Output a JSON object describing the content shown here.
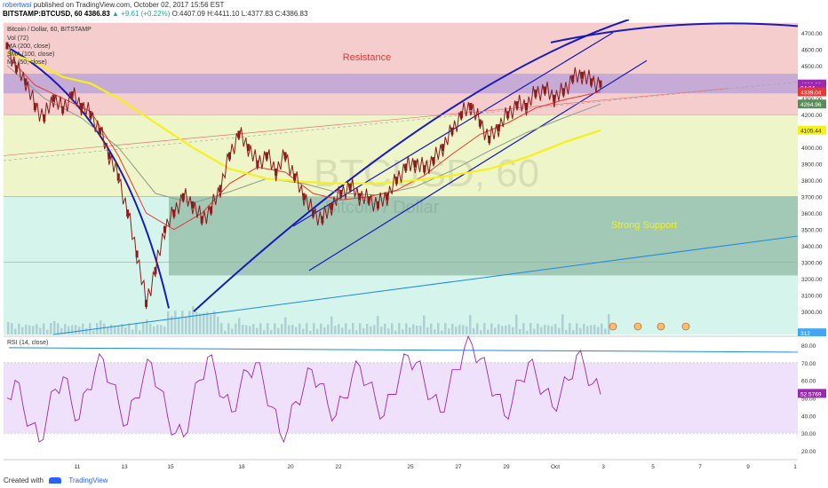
{
  "header": {
    "author": "robertwsi",
    "published": "published on TradingView.com, October 02, 2017 15:56 EST",
    "symbol": "BITSTAMP:BTCUSD, 60",
    "last": "4386.83",
    "change": "▲ +9.61 (+0.22%)",
    "ohlc": "O:4407.09 H:4411.10 L:4377.83 C:4386.83"
  },
  "legend": {
    "title": "Bitcoin / Dollar, 60, BITSTAMP",
    "vol": "Vol (72)",
    "ma200": "MA (200, close)",
    "ma100": "SMA (100, close)",
    "ma50": "MA (50, close)"
  },
  "watermark": {
    "line1": "BTCUSD, 60",
    "line2": "Bitcoin / Dollar"
  },
  "zones": {
    "resistance": "Resistance",
    "support": "Strong Support"
  },
  "rsi": {
    "label": "RSI (14, close)",
    "value": "52.5769"
  },
  "footer": {
    "created": "Created with",
    "brand": "TradingView"
  },
  "colors": {
    "resistance_zone": "#f6cdcd",
    "purple_zone": "#b39ddb",
    "yellow_zone": "#eef5c8",
    "support_zone": "#8fb9a4",
    "bottom_zone": "#d5f5ec",
    "price_line": "#8a1c1c",
    "ma_yellow": "#f5f01e",
    "ma_red": "#e53935",
    "ma_gray": "#8d9b8d",
    "trend_blue": "#1a1ab8",
    "rsi_line": "#9c27b0",
    "rsi_band": "#efe0fb"
  },
  "chart_data": [
    {
      "type": "line",
      "title": "Bitcoin / Dollar, 60, BITSTAMP",
      "x_ticks": [
        "11",
        "13",
        "15",
        "18",
        "20",
        "22",
        "25",
        "27",
        "29",
        "Oct",
        "3",
        "5",
        "7",
        "9",
        "1"
      ],
      "y_ticks": [
        3000,
        3100,
        3200,
        3300,
        3400,
        3500,
        3600,
        3700,
        3800,
        3900,
        4000,
        4100,
        4200,
        4300,
        4400,
        4500,
        4600,
        4700
      ],
      "ylim": [
        2860,
        4780
      ],
      "price_labels": [
        {
          "value": "4386.83",
          "color": "#9c27b0"
        },
        {
          "value": "04:04",
          "color": "#9c27b0"
        },
        {
          "value": "4339.04",
          "color": "#e53935"
        },
        {
          "value": "4264.96",
          "color": "#5b8c5b"
        },
        {
          "value": "4105.44",
          "color": "#f5f01e"
        },
        {
          "value": "312",
          "color": "#42a5f5"
        }
      ],
      "zones": [
        {
          "name": "Resistance",
          "from": 4200,
          "to": 4760
        },
        {
          "name": "",
          "from": 4330,
          "to": 4450
        },
        {
          "name": "Strong Support",
          "from": 3220,
          "to": 3700
        }
      ],
      "price": [
        [
          0,
          4620
        ],
        [
          1,
          4480
        ],
        [
          2,
          4400
        ],
        [
          3,
          4250
        ],
        [
          4,
          4180
        ],
        [
          5,
          4300
        ],
        [
          6,
          4230
        ],
        [
          7,
          4320
        ],
        [
          8,
          4250
        ],
        [
          9,
          4200
        ],
        [
          10,
          4100
        ],
        [
          11,
          3950
        ],
        [
          12,
          3820
        ],
        [
          13,
          3600
        ],
        [
          14,
          3350
        ],
        [
          15,
          3050
        ],
        [
          16,
          3250
        ],
        [
          17,
          3500
        ],
        [
          18,
          3600
        ],
        [
          19,
          3700
        ],
        [
          20,
          3650
        ],
        [
          21,
          3560
        ],
        [
          22,
          3620
        ],
        [
          23,
          3750
        ],
        [
          24,
          3950
        ],
        [
          25,
          4080
        ],
        [
          26,
          4000
        ],
        [
          27,
          3900
        ],
        [
          28,
          3950
        ],
        [
          29,
          3850
        ],
        [
          30,
          3950
        ],
        [
          31,
          3820
        ],
        [
          32,
          3700
        ],
        [
          33,
          3600
        ],
        [
          34,
          3560
        ],
        [
          35,
          3640
        ],
        [
          36,
          3720
        ],
        [
          37,
          3760
        ],
        [
          38,
          3700
        ],
        [
          39,
          3680
        ],
        [
          40,
          3650
        ],
        [
          41,
          3700
        ],
        [
          42,
          3800
        ],
        [
          43,
          3880
        ],
        [
          44,
          3900
        ],
        [
          45,
          3870
        ],
        [
          46,
          3920
        ],
        [
          47,
          4000
        ],
        [
          48,
          4100
        ],
        [
          49,
          4200
        ],
        [
          50,
          4250
        ],
        [
          51,
          4150
        ],
        [
          52,
          4050
        ],
        [
          53,
          4120
        ],
        [
          54,
          4200
        ],
        [
          55,
          4260
        ],
        [
          56,
          4250
        ],
        [
          57,
          4330
        ],
        [
          58,
          4350
        ],
        [
          59,
          4300
        ],
        [
          60,
          4340
        ],
        [
          61,
          4420
        ],
        [
          62,
          4440
        ],
        [
          63,
          4400
        ],
        [
          64,
          4387
        ]
      ],
      "ma_yellow": [
        [
          0,
          4580
        ],
        [
          3,
          4520
        ],
        [
          6,
          4430
        ],
        [
          9,
          4390
        ],
        [
          12,
          4300
        ],
        [
          16,
          4150
        ],
        [
          20,
          4000
        ],
        [
          24,
          3870
        ],
        [
          28,
          3810
        ],
        [
          32,
          3790
        ],
        [
          36,
          3780
        ],
        [
          40,
          3780
        ],
        [
          44,
          3800
        ],
        [
          48,
          3830
        ],
        [
          52,
          3870
        ],
        [
          56,
          3940
        ],
        [
          60,
          4030
        ],
        [
          64,
          4105
        ]
      ],
      "ma_red": [
        [
          0,
          4560
        ],
        [
          3,
          4380
        ],
        [
          6,
          4300
        ],
        [
          9,
          4220
        ],
        [
          12,
          3950
        ],
        [
          15,
          3600
        ],
        [
          18,
          3500
        ],
        [
          21,
          3600
        ],
        [
          24,
          3780
        ],
        [
          27,
          3880
        ],
        [
          30,
          3850
        ],
        [
          33,
          3720
        ],
        [
          36,
          3680
        ],
        [
          39,
          3700
        ],
        [
          42,
          3740
        ],
        [
          45,
          3830
        ],
        [
          48,
          3960
        ],
        [
          51,
          4080
        ],
        [
          54,
          4150
        ],
        [
          57,
          4240
        ],
        [
          60,
          4290
        ],
        [
          64,
          4339
        ]
      ],
      "ma_gray": [
        [
          0,
          4500
        ],
        [
          4,
          4300
        ],
        [
          8,
          4180
        ],
        [
          12,
          4000
        ],
        [
          16,
          3720
        ],
        [
          20,
          3660
        ],
        [
          24,
          3730
        ],
        [
          28,
          3810
        ],
        [
          32,
          3780
        ],
        [
          36,
          3720
        ],
        [
          40,
          3710
        ],
        [
          44,
          3760
        ],
        [
          48,
          3860
        ],
        [
          52,
          3980
        ],
        [
          56,
          4090
        ],
        [
          60,
          4180
        ],
        [
          64,
          4265
        ]
      ],
      "rsi": {
        "ylim": [
          15,
          85
        ],
        "y_ticks": [
          20,
          30,
          40,
          50,
          60,
          70,
          80
        ],
        "values": [
          50,
          60,
          45,
          35,
          25,
          40,
          55,
          62,
          48,
          38,
          55,
          66,
          72,
          58,
          45,
          35,
          50,
          62,
          70,
          55,
          40,
          30,
          28,
          45,
          60,
          73,
          64,
          50,
          42,
          55,
          65,
          70,
          58,
          45,
          30,
          32,
          48,
          56,
          66,
          58,
          46,
          40,
          50,
          62,
          68,
          58,
          48,
          40,
          52,
          64,
          74,
          70,
          60,
          50,
          42,
          54,
          66,
          78,
          80,
          72,
          62,
          52,
          40,
          48,
          60,
          70,
          62,
          54,
          45,
          52,
          60,
          74,
          68,
          58,
          52
        ]
      }
    }
  ]
}
